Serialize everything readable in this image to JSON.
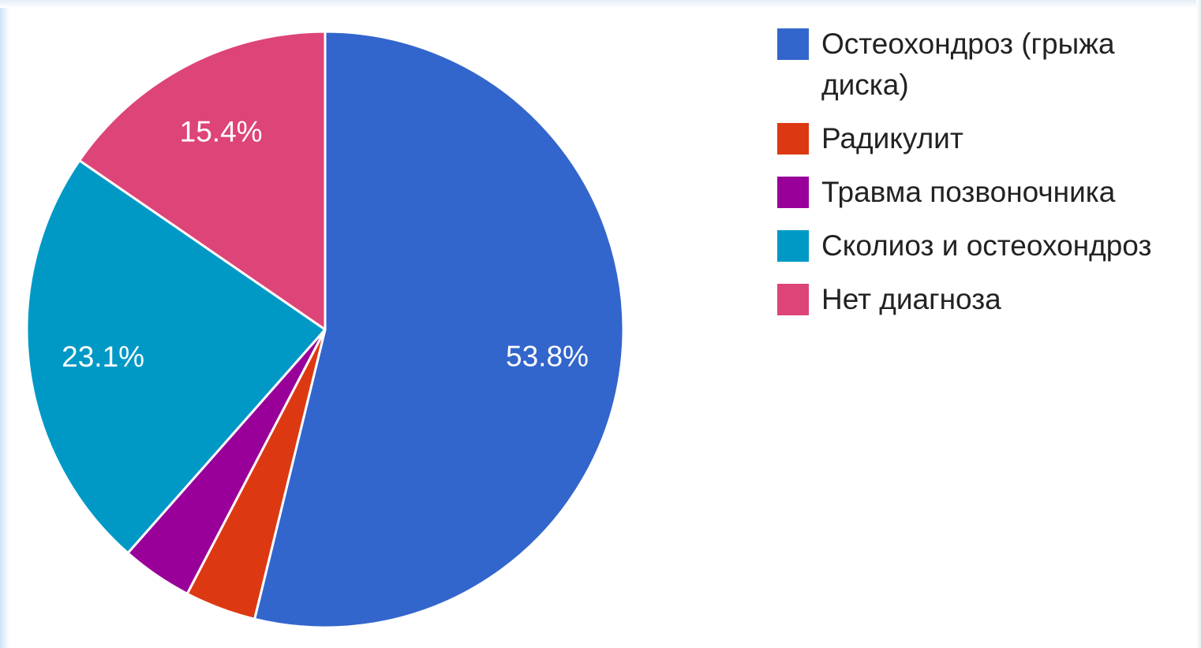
{
  "chart_data": {
    "type": "pie",
    "categories": [
      "Остеохондроз (грыжа диска)",
      "Радикулит",
      "Травма позвоночника",
      "Сколиоз и остеохондроз",
      "Нет диагноза"
    ],
    "values": [
      53.8,
      3.85,
      3.85,
      23.1,
      15.4
    ],
    "slice_labels": [
      "53.8%",
      "",
      "",
      "23.1%",
      "15.4%"
    ],
    "colors": [
      "#3366cc",
      "#dc3912",
      "#990099",
      "#0099c6",
      "#dd4477"
    ],
    "start_angle": "12 o'clock",
    "direction": "clockwise",
    "legend_position": "right"
  }
}
